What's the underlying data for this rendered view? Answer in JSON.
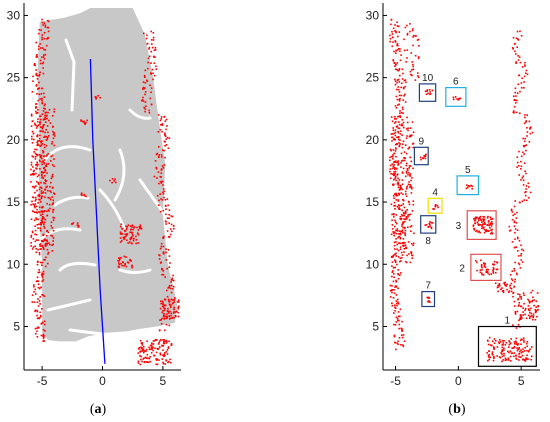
{
  "chart_data": [
    {
      "type": "scatter",
      "panel_label": "(a)",
      "panel_letter": "a",
      "xlim": [
        -6.5,
        6.5
      ],
      "ylim": [
        1.5,
        31
      ],
      "xticks": [
        -5,
        0,
        5
      ],
      "yticks": [
        5,
        10,
        15,
        20,
        25,
        30
      ],
      "grid": false,
      "colors": {
        "ground_points": "#c8c8c8",
        "obstacle_points": "#ff0000",
        "trajectory": "#0000ff",
        "axis": "#000000"
      },
      "trajectory": [
        [
          0.2,
          2.0
        ],
        [
          -0.2,
          8.0
        ],
        [
          -0.5,
          14.0
        ],
        [
          -0.8,
          20.0
        ],
        [
          -1.0,
          26.5
        ]
      ]
    },
    {
      "type": "scatter",
      "panel_label": "(b)",
      "panel_letter": "b",
      "xlim": [
        -6,
        6.5
      ],
      "ylim": [
        1.5,
        31
      ],
      "xticks": [
        -5,
        0,
        5
      ],
      "yticks": [
        5,
        10,
        15,
        20,
        25,
        30
      ],
      "grid": false,
      "colors": {
        "obstacle_points": "#ff0000",
        "axis": "#000000"
      },
      "boxes": [
        {
          "label": "1",
          "color": "#000000",
          "x": [
            1.6,
            6.2
          ],
          "y": [
            1.8,
            5.0
          ]
        },
        {
          "label": "2",
          "color": "#e05050",
          "x": [
            1.0,
            3.4
          ],
          "y": [
            8.7,
            10.8
          ]
        },
        {
          "label": "3",
          "color": "#e05050",
          "x": [
            0.7,
            3.0
          ],
          "y": [
            12.0,
            14.3
          ]
        },
        {
          "label": "4",
          "color": "#f0e000",
          "x": [
            -2.4,
            -1.3
          ],
          "y": [
            14.1,
            15.3
          ]
        },
        {
          "label": "5",
          "color": "#20b0e0",
          "x": [
            -0.1,
            1.6
          ],
          "y": [
            15.6,
            17.1
          ]
        },
        {
          "label": "6",
          "color": "#20b0e0",
          "x": [
            -1.0,
            0.6
          ],
          "y": [
            22.7,
            24.2
          ]
        },
        {
          "label": "7",
          "color": "#204080",
          "x": [
            -2.9,
            -1.9
          ],
          "y": [
            6.6,
            7.8
          ]
        },
        {
          "label": "8",
          "color": "#204080",
          "x": [
            -3.0,
            -1.8
          ],
          "y": [
            12.5,
            13.9
          ]
        },
        {
          "label": "9",
          "color": "#204080",
          "x": [
            -3.5,
            -2.4
          ],
          "y": [
            18.0,
            19.4
          ]
        },
        {
          "label": "10",
          "color": "#204080",
          "x": [
            -3.1,
            -1.8
          ],
          "y": [
            23.1,
            24.5
          ]
        }
      ]
    }
  ]
}
